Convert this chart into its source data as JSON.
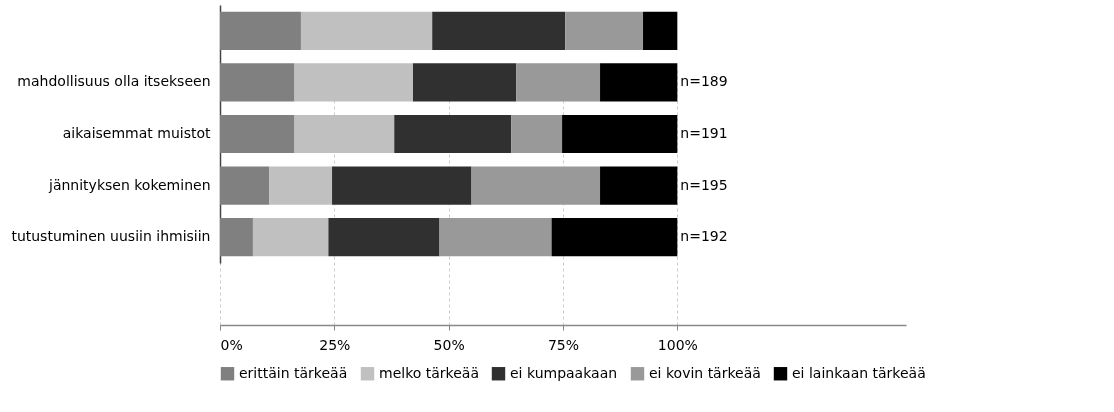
{
  "chart_data": {
    "type": "bar",
    "orientation": "horizontal",
    "stacked": true,
    "categories": [
      null,
      "mahdollisuus olla itsekseen",
      "aikaisemmat muistot",
      "jännityksen kokeminen",
      "tutustuminen uusiin ihmisiin"
    ],
    "series": [
      {
        "name": "erittäin tärkeää",
        "color": "#808080",
        "values": [
          17.7,
          16.3,
          16.3,
          10.8,
          7.2
        ]
      },
      {
        "name": "melko tärkeää",
        "color": "#c0c0c0",
        "values": [
          28.7,
          25.9,
          21.8,
          13.7,
          16.5
        ]
      },
      {
        "name": "ei kumpaakaan",
        "color": "#303030",
        "values": [
          29.1,
          22.6,
          25.6,
          30.5,
          24.3
        ]
      },
      {
        "name": "ei kovin tärkeää",
        "color": "#999999",
        "values": [
          17.0,
          18.3,
          11.1,
          28.1,
          24.5
        ]
      },
      {
        "name": "ei lainkaan tärkeää",
        "color": "#000000",
        "values": [
          7.5,
          16.9,
          25.2,
          16.9,
          27.5
        ]
      }
    ],
    "annotations": [
      "n=189",
      "n=191",
      "n=195",
      "n=192"
    ],
    "xlim": [
      0,
      150
    ],
    "xticks": [
      {
        "value": 0,
        "label": "0%"
      },
      {
        "value": 25,
        "label": "25%"
      },
      {
        "value": 50,
        "label": "50%"
      },
      {
        "value": 75,
        "label": "75%"
      },
      {
        "value": 100,
        "label": "100%"
      }
    ],
    "grid": "x",
    "legend": "bottom"
  }
}
